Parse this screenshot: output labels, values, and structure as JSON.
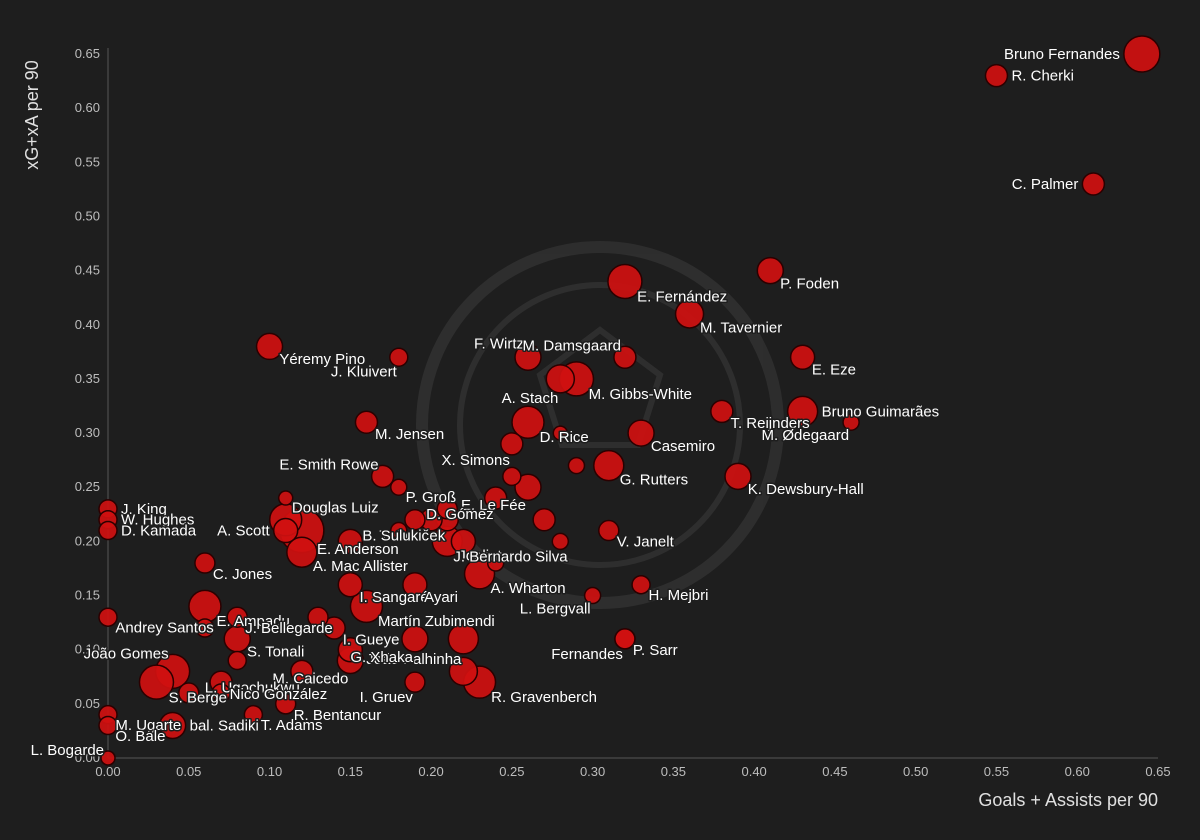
{
  "colors": {
    "background": "#1e1e1e",
    "bubble": "#d01010",
    "bubble_stroke": "#2a0000",
    "text": "#ffffff",
    "tick": "#bdbdbd"
  },
  "chart_data": {
    "type": "scatter",
    "title": "",
    "xlabel": "Goals + Assists per 90",
    "ylabel": "xG+xA per 90",
    "xlim": [
      0.0,
      0.65
    ],
    "ylim": [
      0.0,
      0.65
    ],
    "xticks": [
      "0.00",
      "0.05",
      "0.10",
      "0.15",
      "0.20",
      "0.25",
      "0.30",
      "0.35",
      "0.40",
      "0.45",
      "0.50",
      "0.55",
      "0.60",
      "0.65"
    ],
    "yticks": [
      "0.00",
      "0.05",
      "0.10",
      "0.15",
      "0.20",
      "0.25",
      "0.30",
      "0.35",
      "0.40",
      "0.45",
      "0.50",
      "0.55",
      "0.60",
      "0.65"
    ],
    "grid": false,
    "marker_size": "bubble size varies by player",
    "points": [
      {
        "name": "Bruno Fernandes",
        "x": 0.64,
        "y": 0.65,
        "s": 18
      },
      {
        "name": "R. Cherki",
        "x": 0.55,
        "y": 0.63,
        "s": 11
      },
      {
        "name": "C. Palmer",
        "x": 0.61,
        "y": 0.53,
        "s": 11
      },
      {
        "name": "P. Foden",
        "x": 0.41,
        "y": 0.45,
        "s": 13
      },
      {
        "name": "E. Fernández",
        "x": 0.32,
        "y": 0.44,
        "s": 17
      },
      {
        "name": "M. Tavernier",
        "x": 0.36,
        "y": 0.41,
        "s": 14
      },
      {
        "name": "Yéremy Pino",
        "x": 0.1,
        "y": 0.38,
        "s": 13
      },
      {
        "name": "J. Kluivert",
        "x": 0.18,
        "y": 0.37,
        "s": 9
      },
      {
        "name": "F. Wirtz",
        "x": 0.26,
        "y": 0.37,
        "s": 13
      },
      {
        "name": "M. Damsgaard",
        "x": 0.32,
        "y": 0.37,
        "s": 11
      },
      {
        "name": "E. Eze",
        "x": 0.43,
        "y": 0.37,
        "s": 12
      },
      {
        "name": "A. Stach",
        "x": 0.28,
        "y": 0.35,
        "s": 14
      },
      {
        "name": "M. Gibbs-White",
        "x": 0.29,
        "y": 0.35,
        "s": 17
      },
      {
        "name": "T. Reijnders",
        "x": 0.38,
        "y": 0.32,
        "s": 11
      },
      {
        "name": "Bruno Guimarães",
        "x": 0.43,
        "y": 0.32,
        "s": 15
      },
      {
        "name": "M. Ødegaard",
        "x": 0.46,
        "y": 0.31,
        "s": 8
      },
      {
        "name": "M. Jensen",
        "x": 0.16,
        "y": 0.31,
        "s": 11
      },
      {
        "name": "D. Rice",
        "x": 0.26,
        "y": 0.31,
        "s": 16
      },
      {
        "name": "Casemiro",
        "x": 0.33,
        "y": 0.3,
        "s": 13
      },
      {
        "name": "X. Simons",
        "x": 0.25,
        "y": 0.29,
        "s": 11
      },
      {
        "name": "G. Rutters",
        "x": 0.31,
        "y": 0.27,
        "s": 15
      },
      {
        "name": "K. Dewsbury-Hall",
        "x": 0.39,
        "y": 0.26,
        "s": 13
      },
      {
        "name": "E. Smith Rowe",
        "x": 0.17,
        "y": 0.26,
        "s": 11
      },
      {
        "name": "E. Le Fée",
        "x": 0.26,
        "y": 0.25,
        "s": 13
      },
      {
        "name": "P. Groß",
        "x": 0.18,
        "y": 0.25,
        "s": 8
      },
      {
        "name": "Douglas Luiz",
        "x": 0.11,
        "y": 0.24,
        "s": 7
      },
      {
        "name": "D. Gómez",
        "x": 0.24,
        "y": 0.24,
        "s": 11
      },
      {
        "name": "J. King",
        "x": 0.0,
        "y": 0.23,
        "s": 9
      },
      {
        "name": "T. Souček",
        "x": 0.21,
        "y": 0.22,
        "s": 11
      },
      {
        "name": "W. Hughes",
        "x": 0.0,
        "y": 0.22,
        "s": 9
      },
      {
        "name": "A. Scott",
        "x": 0.11,
        "y": 0.21,
        "s": 12
      },
      {
        "name": "B. Sulukic",
        "x": 0.2,
        "y": 0.22,
        "s": 11
      },
      {
        "name": "V. Janelt",
        "x": 0.31,
        "y": 0.21,
        "s": 10
      },
      {
        "name": "D. Kamada",
        "x": 0.0,
        "y": 0.21,
        "s": 9
      },
      {
        "name": "E. Anderson",
        "x": 0.12,
        "y": 0.21,
        "s": 22
      },
      {
        "name": "Joelinton",
        "x": 0.21,
        "y": 0.2,
        "s": 15
      },
      {
        "name": "J. Bernardo Silva",
        "x": 0.22,
        "y": 0.2,
        "s": 12
      },
      {
        "name": "A. Mac Allister",
        "x": 0.12,
        "y": 0.19,
        "s": 15
      },
      {
        "name": "C. Jones",
        "x": 0.06,
        "y": 0.18,
        "s": 10
      },
      {
        "name": "A. Wharton",
        "x": 0.23,
        "y": 0.17,
        "s": 15
      },
      {
        "name": "I. Sangaré",
        "x": 0.15,
        "y": 0.16,
        "s": 12
      },
      {
        "name": "Ayari",
        "x": 0.19,
        "y": 0.16,
        "s": 12
      },
      {
        "name": "H. Mejbri",
        "x": 0.33,
        "y": 0.16,
        "s": 9
      },
      {
        "name": "L. Bergvall",
        "x": 0.3,
        "y": 0.15,
        "s": 8
      },
      {
        "name": "Martín Zubimendi",
        "x": 0.16,
        "y": 0.14,
        "s": 16
      },
      {
        "name": "E. Ampadu",
        "x": 0.06,
        "y": 0.14,
        "s": 16
      },
      {
        "name": "Andrey Santos",
        "x": 0.0,
        "y": 0.13,
        "s": 9
      },
      {
        "name": "J. Bellegarde",
        "x": 0.08,
        "y": 0.13,
        "s": 10
      },
      {
        "name": "S. Tonali",
        "x": 0.08,
        "y": 0.11,
        "s": 13
      },
      {
        "name": "I. Gueye",
        "x": 0.14,
        "y": 0.12,
        "s": 11
      },
      {
        "name": "João Palhinha",
        "x": 0.22,
        "y": 0.11,
        "s": 15
      },
      {
        "name": "Fernandes",
        "x": 0.32,
        "y": 0.11,
        "s": 10
      },
      {
        "name": "P. Sarr",
        "x": 0.32,
        "y": 0.11,
        "s": 10
      },
      {
        "name": "M. Caicedo",
        "x": 0.15,
        "y": 0.09,
        "s": 13
      },
      {
        "name": "G. Xhaka",
        "x": 0.19,
        "y": 0.11,
        "s": 13
      },
      {
        "name": "João Gomes",
        "x": 0.04,
        "y": 0.08,
        "s": 17
      },
      {
        "name": "L. Ugochukwu",
        "x": 0.12,
        "y": 0.08,
        "s": 11
      },
      {
        "name": "S. Berge",
        "x": 0.03,
        "y": 0.07,
        "s": 17
      },
      {
        "name": "Nico González",
        "x": 0.07,
        "y": 0.07,
        "s": 11
      },
      {
        "name": "R. Bentancur",
        "x": 0.11,
        "y": 0.05,
        "s": 10
      },
      {
        "name": "R. Gravenberch",
        "x": 0.23,
        "y": 0.07,
        "s": 16
      },
      {
        "name": "I. Gruev",
        "x": 0.19,
        "y": 0.07,
        "s": 10
      },
      {
        "name": "T. Adams",
        "x": 0.09,
        "y": 0.04,
        "s": 9
      },
      {
        "name": "M. Ugarte",
        "x": 0.0,
        "y": 0.04,
        "s": 9
      },
      {
        "name": "O. Bale",
        "x": 0.0,
        "y": 0.03,
        "s": 9
      },
      {
        "name": "bal. Sadiki",
        "x": 0.04,
        "y": 0.03,
        "s": 13
      },
      {
        "name": "L. Bogarde",
        "x": 0.0,
        "y": 0.0,
        "s": 7
      }
    ],
    "unlabeled_points": [
      {
        "x": 0.08,
        "y": 0.09,
        "s": 9
      },
      {
        "x": 0.05,
        "y": 0.06,
        "s": 10
      },
      {
        "x": 0.07,
        "y": 0.06,
        "s": 9
      },
      {
        "x": 0.06,
        "y": 0.12,
        "s": 9
      },
      {
        "x": 0.13,
        "y": 0.13,
        "s": 10
      },
      {
        "x": 0.15,
        "y": 0.2,
        "s": 12
      },
      {
        "x": 0.19,
        "y": 0.22,
        "s": 10
      },
      {
        "x": 0.21,
        "y": 0.23,
        "s": 10
      },
      {
        "x": 0.24,
        "y": 0.18,
        "s": 8
      },
      {
        "x": 0.27,
        "y": 0.22,
        "s": 11
      },
      {
        "x": 0.28,
        "y": 0.2,
        "s": 8
      },
      {
        "x": 0.29,
        "y": 0.27,
        "s": 8
      },
      {
        "x": 0.28,
        "y": 0.3,
        "s": 7
      },
      {
        "x": 0.25,
        "y": 0.26,
        "s": 9
      },
      {
        "x": 0.15,
        "y": 0.1,
        "s": 12
      },
      {
        "x": 0.22,
        "y": 0.08,
        "s": 14
      },
      {
        "x": 0.18,
        "y": 0.21,
        "s": 8
      },
      {
        "x": 0.11,
        "y": 0.22,
        "s": 16
      }
    ],
    "label_side": {
      "Bruno Fernandes": "left",
      "R. Cherki": "right",
      "C. Palmer": "left",
      "Yéremy Pino": "right-below",
      "J. Kluivert": "left-below",
      "F. Wirtz": "above-left",
      "M. Damsgaard": "above-left",
      "A. Stach": "left-below",
      "M. Gibbs-White": "right-below",
      "Bruno Guimarães": "right",
      "M. Ødegaard": "left-below",
      "Douglas Luiz": "right-below",
      "A. Scott": "left",
      "J. King": "right",
      "W. Hughes": "right",
      "D. Kamada": "right",
      "E. Anderson": "right-below",
      "Joelinton": "right-below",
      "J. Bernardo Silva": "left-below-far",
      "A. Mac Allister": "right-below",
      "Andrey Santos": "right-below",
      "João Gomes": "left-above",
      "S. Berge": "right-below",
      "Nico González": "right-below",
      "M. Caicedo": "left-below",
      "L. Ugochukwu": "left-below",
      "I. Gruev": "left-below",
      "L. Bogarde": "left-above",
      "bal. Sadiki": "right",
      "O. Bale": "right-below",
      "E. Ampadu": "right-below",
      "J. Bellegarde": "right-below",
      "S. Tonali": "right-below",
      "I. Gueye": "right-below",
      "João Palhinha": "left-below",
      "Fernandes": "left-below",
      "L. Bergvall": "left-below",
      "E. Smith Rowe": "left-above",
      "P. Groß": "right-below",
      "E. Le Fée": "left-below",
      "T. Souček": "left-below",
      "D. Gómez": "left-below",
      "B. Sulukic": "left-below",
      "X. Simons": "left-below",
      "D. Rice": "right-below",
      "Martín Zubimendi": "right-below",
      "I. Sangaré": "right-below",
      "Ayari": "right-below",
      "G. Xhaka": "left-below",
      "R. Bentancur": "right-below",
      "T. Adams": "right-below"
    }
  }
}
